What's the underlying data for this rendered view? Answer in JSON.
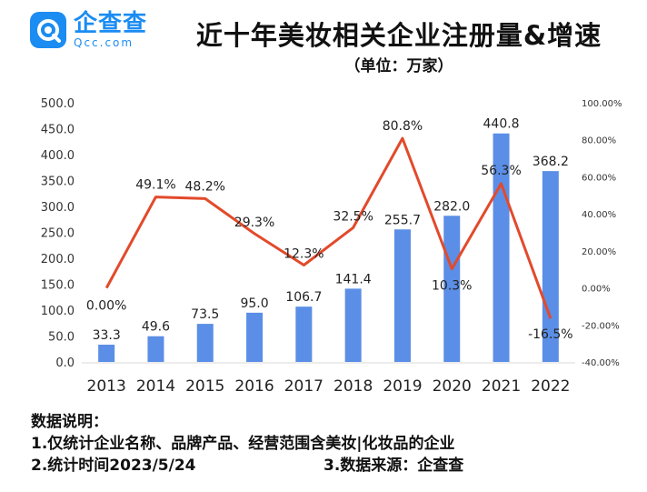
{
  "brand": {
    "name": "企查查",
    "domain": "Qcc.com",
    "logo_icon": "qcc-logo-icon",
    "color": "#1b8cf2"
  },
  "title": "近十年美妆相关企业注册量&增速",
  "subtitle": "（单位：万家）",
  "notes": {
    "heading": "数据说明：",
    "line1": "1.仅统计企业名称、品牌产品、经营范围含美妆|化妆品的企业",
    "date": "2.统计时间2023/5/24",
    "source": "3.数据来源：企查查"
  },
  "chart_data": {
    "type": "bar",
    "categories": [
      "2013",
      "2014",
      "2015",
      "2016",
      "2017",
      "2018",
      "2019",
      "2020",
      "2021",
      "2022"
    ],
    "series": [
      {
        "type": "bar",
        "axis": "left",
        "color": "#5b8ee6",
        "values": [
          33.3,
          49.6,
          73.5,
          95.0,
          106.7,
          141.4,
          255.7,
          282.0,
          440.8,
          368.2
        ],
        "labels": [
          "33.3",
          "49.6",
          "73.5",
          "95.0",
          "106.7",
          "141.4",
          "255.7",
          "282.0",
          "440.8",
          "368.2"
        ]
      },
      {
        "type": "line",
        "axis": "right",
        "color": "#e24a2b",
        "values": [
          0.0,
          49.1,
          48.2,
          29.3,
          12.3,
          32.5,
          80.8,
          10.3,
          56.3,
          -16.5
        ],
        "labels": [
          "0.00%",
          "49.1%",
          "48.2%",
          "29.3%",
          "12.3%",
          "32.5%",
          "80.8%",
          "10.3%",
          "56.3%",
          "-16.5%"
        ]
      }
    ],
    "y_left": {
      "ylim": [
        0,
        500
      ],
      "ticks": [
        "0.0",
        "50.0",
        "100.0",
        "150.0",
        "200.0",
        "250.0",
        "300.0",
        "350.0",
        "400.0",
        "450.0",
        "500.0"
      ]
    },
    "y_right": {
      "ylim": [
        -40,
        100
      ],
      "ticks": [
        "-40.00%",
        "-20.00%",
        "0.00%",
        "20.00%",
        "40.00%",
        "60.00%",
        "80.00%",
        "100.00%"
      ]
    },
    "grid": false,
    "legend": "none"
  }
}
